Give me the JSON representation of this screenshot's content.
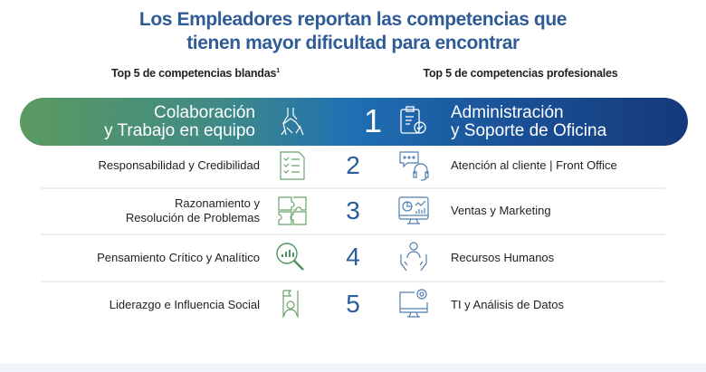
{
  "title": {
    "line1": "Los Empleadores reportan las competencias que",
    "line2": "tienen mayor dificultad para encontrar"
  },
  "columns": {
    "soft": "Top 5 de competencias blandas",
    "soft_sup": "1",
    "professional": "Top 5 de competencias profesionales"
  },
  "colors": {
    "title": "#2f5b96",
    "green": "#5b9a60",
    "blue": "#1f6fb3",
    "navy": "#15397a",
    "number": "#2a5d9c"
  },
  "rows": [
    {
      "rank": "1",
      "soft": [
        "Colaboración",
        "y Trabajo en equipo"
      ],
      "soft_icon": "handshake-icon",
      "professional": [
        "Administración",
        "y Soporte de Oficina"
      ],
      "professional_icon": "clipboard-check-icon"
    },
    {
      "rank": "2",
      "soft": [
        "Responsabilidad y Credibilidad"
      ],
      "soft_icon": "checklist-icon",
      "professional": [
        "Atención al cliente | Front Office"
      ],
      "professional_icon": "chat-headset-icon"
    },
    {
      "rank": "3",
      "soft": [
        "Razonamiento  y",
        "Resolución de Problemas"
      ],
      "soft_icon": "puzzle-icon",
      "professional": [
        "Ventas y Marketing"
      ],
      "professional_icon": "monitor-chart-icon"
    },
    {
      "rank": "4",
      "soft": [
        "Pensamiento Crítico y Analítico"
      ],
      "soft_icon": "magnifier-chart-icon",
      "professional": [
        "Recursos Humanos"
      ],
      "professional_icon": "hands-person-icon"
    },
    {
      "rank": "5",
      "soft": [
        "Liderazgo e Influencia Social"
      ],
      "soft_icon": "leader-flag-icon",
      "professional": [
        "TI y Análisis de Datos"
      ],
      "professional_icon": "monitor-gear-icon"
    }
  ]
}
